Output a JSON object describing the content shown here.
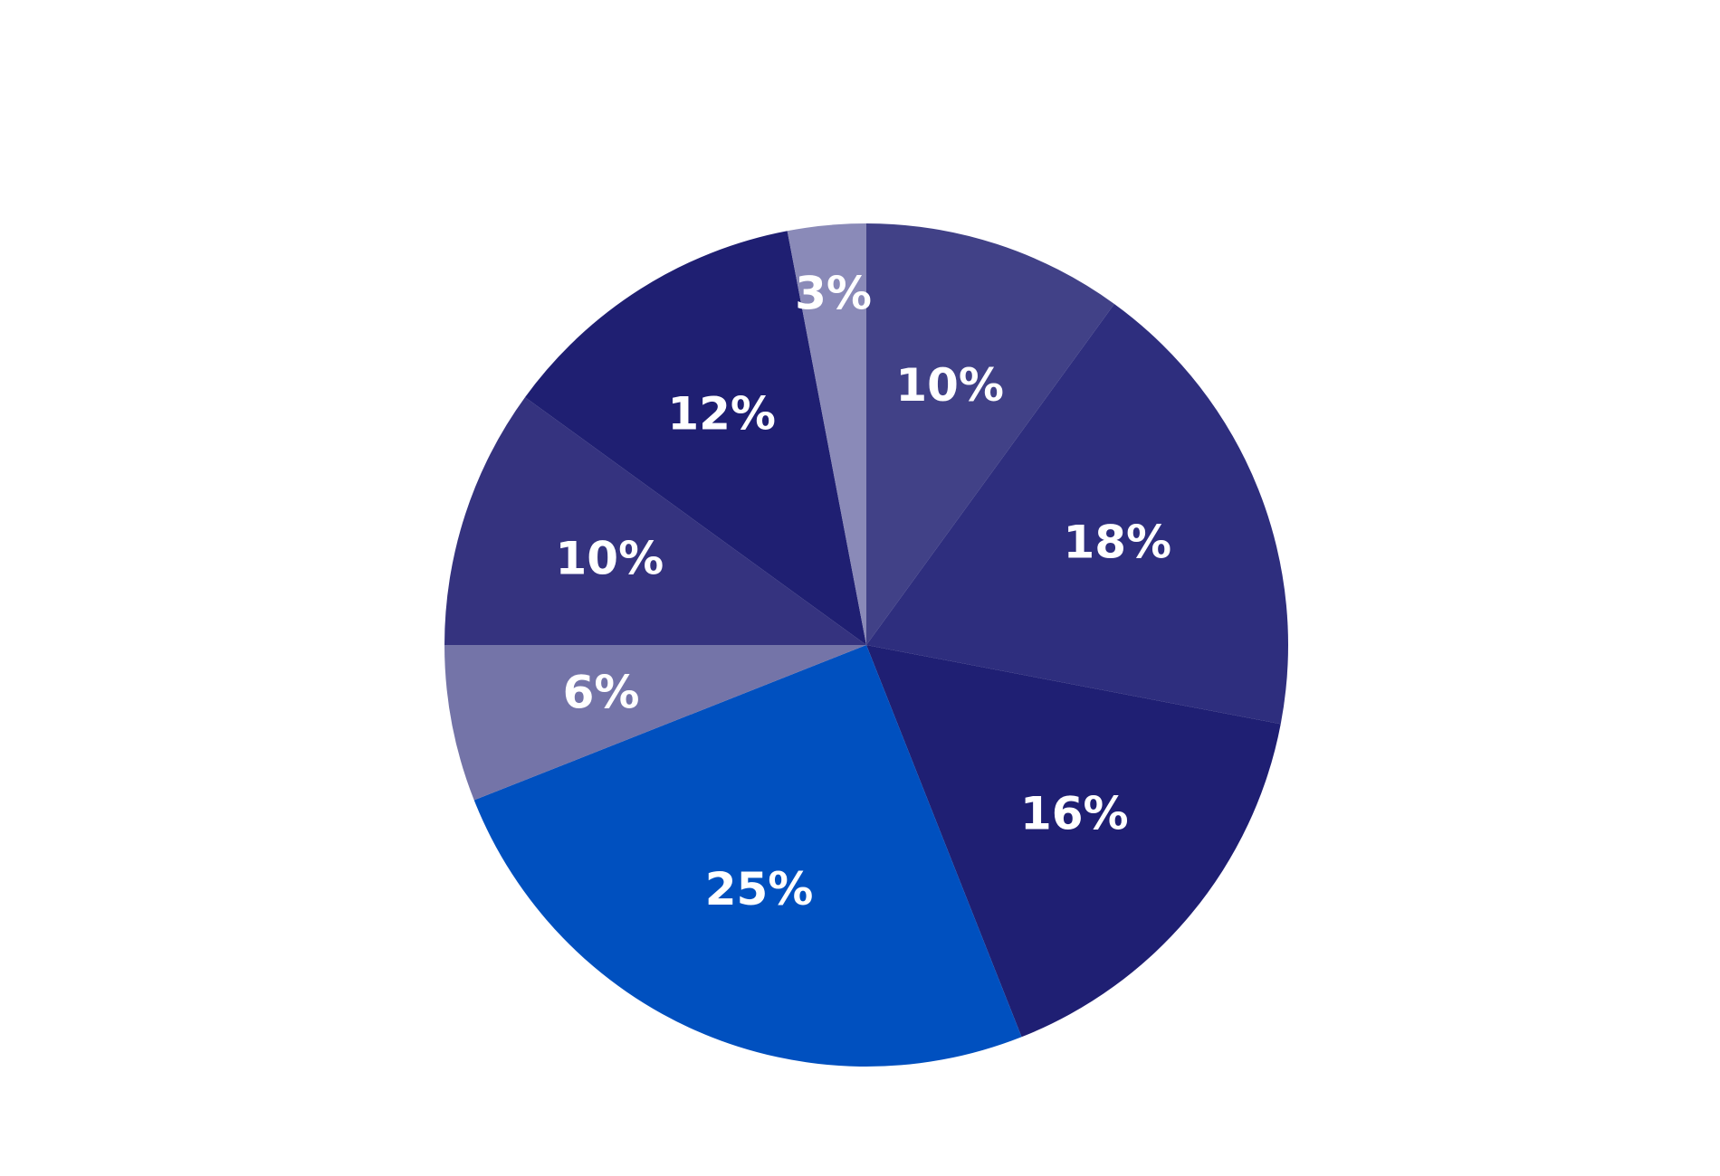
{
  "chart_data": {
    "type": "pie",
    "values": [
      10,
      18,
      16,
      25,
      6,
      10,
      12,
      3
    ],
    "value_labels": [
      "10%",
      "18%",
      "16%",
      "25%",
      "6%",
      "10%",
      "12%",
      "3%"
    ],
    "colors": [
      "#414187",
      "#2e2e7e",
      "#1f1f73",
      "#0050bf",
      "#7474a8",
      "#35337f",
      "#1f1f72",
      "#8a8ab8"
    ]
  }
}
